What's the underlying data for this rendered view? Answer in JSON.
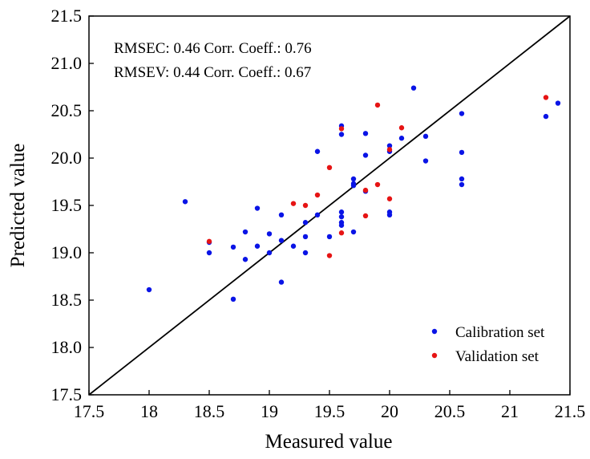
{
  "chart_data": {
    "type": "scatter",
    "title": "",
    "xlabel": "Measured value",
    "ylabel": "Predicted value",
    "xlim": [
      17.5,
      21.5
    ],
    "ylim": [
      17.5,
      21.5
    ],
    "xticks": [
      "17.5",
      "18",
      "18.5",
      "19",
      "19.5",
      "20",
      "20.5",
      "21",
      "21.5"
    ],
    "yticks": [
      "17.5",
      "18.0",
      "18.5",
      "19.0",
      "19.5",
      "20.0",
      "20.5",
      "21.0",
      "21.5"
    ],
    "grid": false,
    "legend_position": "bottom-right",
    "reference_line": {
      "type": "y=x",
      "color": "#000000"
    },
    "annotations": [
      "RMSEC: 0.46 Corr. Coeff.: 0.76",
      "RMSEV: 0.44 Corr. Coeff.: 0.67"
    ],
    "series": [
      {
        "name": "Calibration set",
        "color": "#0a14e6",
        "points": [
          [
            18.0,
            18.61
          ],
          [
            18.3,
            19.54
          ],
          [
            18.5,
            19.11
          ],
          [
            18.5,
            19.0
          ],
          [
            18.7,
            19.06
          ],
          [
            18.7,
            18.51
          ],
          [
            18.8,
            19.22
          ],
          [
            18.8,
            18.93
          ],
          [
            18.9,
            19.47
          ],
          [
            18.9,
            19.07
          ],
          [
            19.0,
            19.2
          ],
          [
            19.0,
            19.0
          ],
          [
            19.1,
            19.4
          ],
          [
            19.1,
            19.13
          ],
          [
            19.1,
            18.69
          ],
          [
            19.2,
            19.07
          ],
          [
            19.3,
            19.32
          ],
          [
            19.3,
            19.17
          ],
          [
            19.3,
            19.0
          ],
          [
            19.4,
            20.07
          ],
          [
            19.4,
            19.4
          ],
          [
            19.5,
            19.17
          ],
          [
            19.6,
            20.34
          ],
          [
            19.6,
            20.25
          ],
          [
            19.6,
            19.43
          ],
          [
            19.6,
            19.38
          ],
          [
            19.6,
            19.32
          ],
          [
            19.6,
            19.29
          ],
          [
            19.7,
            19.78
          ],
          [
            19.7,
            19.73
          ],
          [
            19.7,
            19.71
          ],
          [
            19.7,
            19.22
          ],
          [
            19.8,
            20.26
          ],
          [
            19.8,
            20.03
          ],
          [
            19.8,
            19.65
          ],
          [
            20.0,
            20.13
          ],
          [
            20.0,
            20.07
          ],
          [
            20.0,
            19.43
          ],
          [
            20.0,
            19.4
          ],
          [
            20.1,
            20.21
          ],
          [
            20.2,
            20.74
          ],
          [
            20.3,
            20.23
          ],
          [
            20.3,
            19.97
          ],
          [
            20.6,
            20.47
          ],
          [
            20.6,
            20.06
          ],
          [
            20.6,
            19.78
          ],
          [
            20.6,
            19.72
          ],
          [
            21.3,
            20.44
          ],
          [
            21.4,
            20.58
          ]
        ]
      },
      {
        "name": "Validation set",
        "color": "#e61414",
        "points": [
          [
            18.5,
            19.12
          ],
          [
            19.2,
            19.52
          ],
          [
            19.3,
            19.5
          ],
          [
            19.4,
            19.61
          ],
          [
            19.5,
            19.9
          ],
          [
            19.5,
            18.97
          ],
          [
            19.6,
            20.31
          ],
          [
            19.6,
            19.21
          ],
          [
            19.8,
            19.66
          ],
          [
            19.8,
            19.39
          ],
          [
            19.9,
            20.56
          ],
          [
            19.9,
            19.72
          ],
          [
            20.0,
            20.09
          ],
          [
            20.0,
            19.57
          ],
          [
            20.1,
            20.32
          ],
          [
            21.3,
            20.64
          ]
        ]
      }
    ]
  }
}
